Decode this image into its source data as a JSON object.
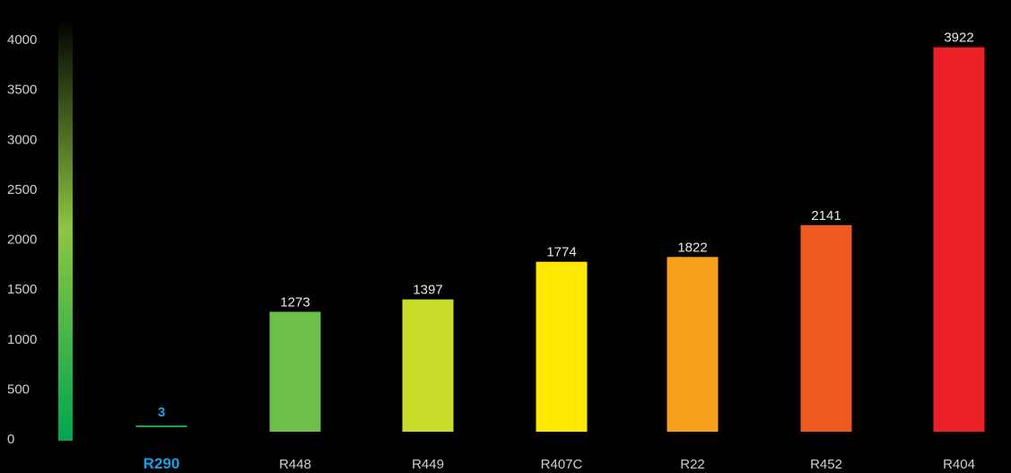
{
  "chart_data": {
    "type": "bar",
    "categories": [
      "R290",
      "R448",
      "R449",
      "R407C",
      "R22",
      "R452",
      "R404"
    ],
    "values": [
      3,
      1273,
      1397,
      1774,
      1822,
      2141,
      3922
    ],
    "value_labels": [
      "3",
      "1273",
      "1397",
      "1774",
      "1822",
      "2141",
      "3922"
    ],
    "highlight_category": "R290",
    "title": "",
    "xlabel": "",
    "ylabel": "",
    "ylim": [
      0,
      4000
    ],
    "yticks": [
      0,
      500,
      1000,
      1500,
      2000,
      2500,
      3000,
      3500,
      4000
    ],
    "grid": true,
    "colors": {
      "background": "#000000",
      "highlight": "#1ea0e6",
      "bars": [
        "#1e9e4a",
        "#6cc04a",
        "#c8dc2a",
        "#ffe800",
        "#f6a01e",
        "#ef5a22",
        "#ec2027"
      ],
      "scale_gradient": [
        "#000000",
        "#8dc63f",
        "#00a651"
      ]
    }
  }
}
